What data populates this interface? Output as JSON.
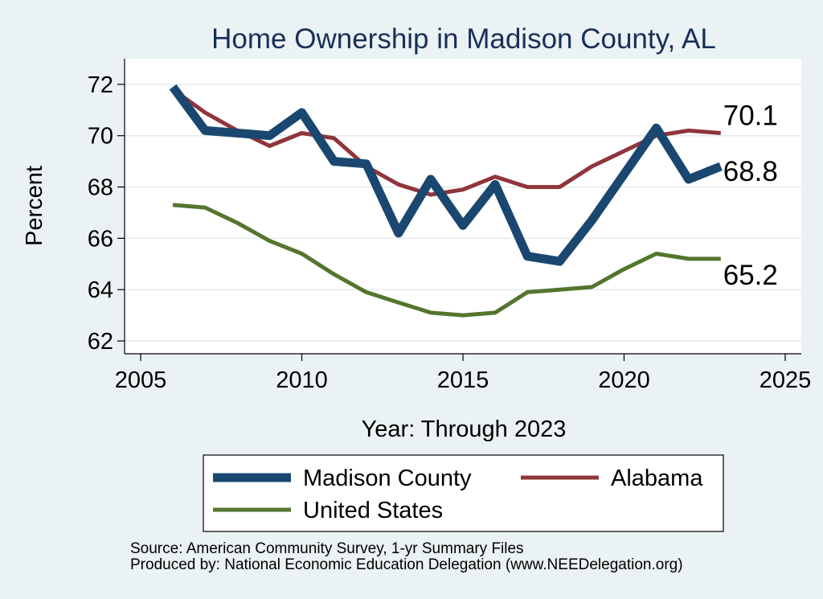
{
  "chart_data": {
    "type": "line",
    "title": "Home Ownership in Madison County, AL",
    "xlabel": "Year: Through 2023",
    "ylabel": "Percent",
    "xlim": [
      2004.5,
      2025.5
    ],
    "ylim": [
      61.5,
      73.0
    ],
    "xticks": [
      2005,
      2010,
      2015,
      2020,
      2025
    ],
    "yticks": [
      62,
      64,
      66,
      68,
      70,
      72
    ],
    "grid": true,
    "legend_position": "bottom",
    "x": [
      2006,
      2007,
      2008,
      2009,
      2010,
      2011,
      2012,
      2013,
      2014,
      2015,
      2016,
      2017,
      2018,
      2019,
      2020,
      2021,
      2022,
      2023
    ],
    "series": [
      {
        "name": "Madison County",
        "color": "#1a476f",
        "values": [
          71.9,
          70.2,
          70.1,
          70.0,
          70.9,
          69.0,
          68.9,
          66.2,
          68.3,
          66.5,
          68.1,
          65.3,
          65.1,
          66.7,
          68.5,
          70.3,
          68.3,
          68.8
        ],
        "end_label": "68.8"
      },
      {
        "name": "Alabama",
        "color": "#90353b",
        "values": [
          71.8,
          70.9,
          70.2,
          69.6,
          70.1,
          69.9,
          68.8,
          68.1,
          67.7,
          67.9,
          68.4,
          68.0,
          68.0,
          68.8,
          69.4,
          70.0,
          70.2,
          70.1
        ],
        "end_label": "70.1"
      },
      {
        "name": "United States",
        "color": "#55752f",
        "values": [
          67.3,
          67.2,
          66.6,
          65.9,
          65.4,
          64.6,
          63.9,
          63.5,
          63.1,
          63.0,
          63.1,
          63.9,
          64.0,
          64.1,
          64.8,
          65.4,
          65.2,
          65.2
        ],
        "end_label": "65.2"
      }
    ],
    "source_note": "Source: American Community Survey, 1-yr Summary Files",
    "produced_note": "Produced by: National Economic Education Delegation (www.NEEDelegation.org)"
  }
}
